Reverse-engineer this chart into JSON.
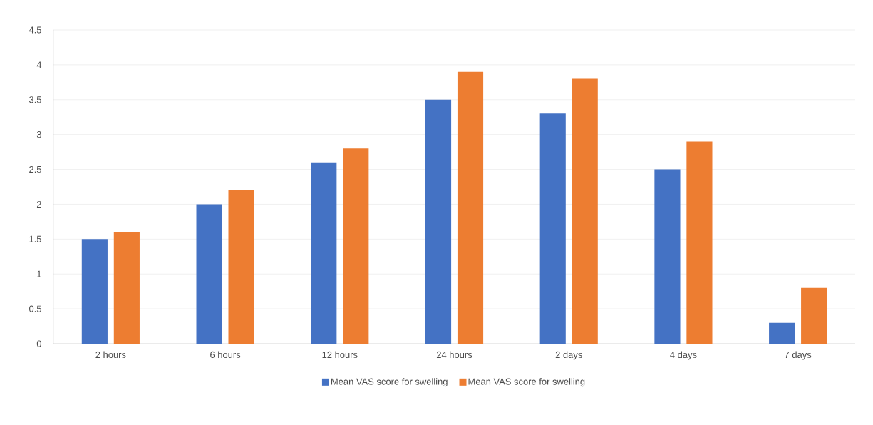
{
  "chart_data": {
    "type": "bar",
    "categories": [
      "2 hours",
      "6 hours",
      "12 hours",
      "24 hours",
      "2 days",
      "4 days",
      "7 days"
    ],
    "series": [
      {
        "name": "Mean VAS score for swelling",
        "color": "#4472c4",
        "values": [
          1.5,
          2,
          2.6,
          3.5,
          3.3,
          2.5,
          0.3
        ]
      },
      {
        "name": "Mean VAS score for swelling",
        "color": "#ed7d31",
        "values": [
          1.6,
          2.2,
          2.8,
          3.9,
          3.8,
          2.9,
          0.8
        ]
      }
    ],
    "ylim": [
      0,
      4.5
    ],
    "yticks": [
      0,
      0.5,
      1,
      1.5,
      2,
      2.5,
      3,
      3.5,
      4,
      4.5
    ],
    "grid": "y",
    "legend": "bottom"
  }
}
